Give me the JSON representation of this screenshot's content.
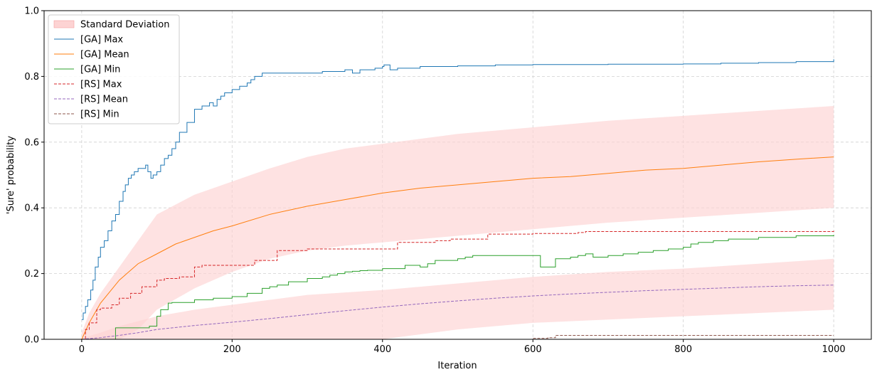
{
  "chart_data": {
    "type": "line",
    "xlabel": "Iteration",
    "ylabel": "'Sure' probability",
    "xlim": [
      -50,
      1050
    ],
    "ylim": [
      0.0,
      1.0
    ],
    "xticks": [
      "0",
      "200",
      "400",
      "600",
      "800",
      "1000"
    ],
    "yticks": [
      "0.0",
      "0.2",
      "0.4",
      "0.6",
      "0.8",
      "1.0"
    ],
    "grid": true,
    "legend_position": "top-left",
    "bands": [
      {
        "name": "Standard Deviation",
        "color": "#fdd3d3",
        "x": [
          0,
          10,
          25,
          50,
          75,
          100,
          150,
          200,
          250,
          300,
          350,
          400,
          500,
          600,
          700,
          800,
          900,
          1000
        ],
        "upper": [
          0.02,
          0.08,
          0.14,
          0.22,
          0.3,
          0.38,
          0.44,
          0.48,
          0.52,
          0.555,
          0.58,
          0.595,
          0.625,
          0.645,
          0.665,
          0.68,
          0.695,
          0.71
        ],
        "lower": [
          0.0,
          0.0,
          0.0,
          0.0,
          0.03,
          0.09,
          0.155,
          0.205,
          0.245,
          0.27,
          0.285,
          0.295,
          0.315,
          0.335,
          0.355,
          0.37,
          0.385,
          0.4
        ]
      },
      {
        "name": "",
        "color": "#fdd3d3",
        "x": [
          0,
          10,
          25,
          50,
          100,
          150,
          200,
          250,
          300,
          400,
          500,
          600,
          700,
          800,
          900,
          1000
        ],
        "upper": [
          0.0,
          0.01,
          0.02,
          0.04,
          0.07,
          0.09,
          0.105,
          0.12,
          0.135,
          0.15,
          0.17,
          0.19,
          0.205,
          0.215,
          0.23,
          0.245
        ],
        "lower": [
          0.0,
          0.0,
          0.0,
          0.0,
          0.0,
          0.0,
          0.0,
          0.0,
          0.0,
          0.0,
          0.03,
          0.05,
          0.06,
          0.07,
          0.08,
          0.09
        ]
      }
    ],
    "series": [
      {
        "name": "[GA] Max",
        "color": "#1f77b4",
        "dash": "solid",
        "step": true,
        "x": [
          0,
          2,
          5,
          8,
          12,
          15,
          18,
          22,
          25,
          30,
          35,
          40,
          45,
          50,
          55,
          58,
          62,
          66,
          70,
          75,
          80,
          85,
          88,
          92,
          95,
          100,
          105,
          110,
          115,
          120,
          125,
          130,
          135,
          140,
          150,
          155,
          160,
          170,
          175,
          180,
          185,
          190,
          195,
          200,
          210,
          220,
          225,
          230,
          235,
          240,
          250,
          260,
          280,
          300,
          320,
          350,
          360,
          370,
          380,
          390,
          400,
          402,
          410,
          420,
          450,
          500,
          550,
          600,
          700,
          800,
          850,
          900,
          950,
          1000
        ],
        "y": [
          0.06,
          0.08,
          0.1,
          0.12,
          0.15,
          0.18,
          0.22,
          0.25,
          0.28,
          0.3,
          0.33,
          0.36,
          0.38,
          0.42,
          0.45,
          0.47,
          0.49,
          0.5,
          0.51,
          0.52,
          0.52,
          0.53,
          0.51,
          0.49,
          0.5,
          0.51,
          0.53,
          0.55,
          0.56,
          0.58,
          0.6,
          0.63,
          0.63,
          0.66,
          0.7,
          0.7,
          0.71,
          0.72,
          0.71,
          0.73,
          0.74,
          0.75,
          0.75,
          0.76,
          0.77,
          0.78,
          0.79,
          0.8,
          0.8,
          0.81,
          0.81,
          0.81,
          0.81,
          0.81,
          0.815,
          0.82,
          0.81,
          0.82,
          0.82,
          0.825,
          0.83,
          0.835,
          0.82,
          0.825,
          0.83,
          0.832,
          0.835,
          0.836,
          0.837,
          0.838,
          0.84,
          0.842,
          0.845,
          0.852
        ]
      },
      {
        "name": "[GA] Mean",
        "color": "#ff7f0e",
        "dash": "solid",
        "step": false,
        "x": [
          0,
          10,
          25,
          50,
          75,
          100,
          125,
          150,
          175,
          200,
          250,
          300,
          350,
          400,
          450,
          500,
          550,
          600,
          650,
          700,
          750,
          800,
          850,
          900,
          950,
          1000
        ],
        "y": [
          0.0,
          0.05,
          0.11,
          0.18,
          0.23,
          0.26,
          0.29,
          0.31,
          0.33,
          0.345,
          0.38,
          0.405,
          0.425,
          0.445,
          0.46,
          0.47,
          0.48,
          0.49,
          0.495,
          0.505,
          0.515,
          0.52,
          0.53,
          0.54,
          0.548,
          0.555
        ]
      },
      {
        "name": "[GA] Min",
        "color": "#2ca02c",
        "dash": "solid",
        "step": true,
        "x": [
          0,
          40,
          45,
          90,
          100,
          105,
          115,
          120,
          150,
          175,
          200,
          210,
          220,
          240,
          250,
          260,
          275,
          300,
          320,
          330,
          340,
          350,
          360,
          370,
          380,
          400,
          430,
          450,
          460,
          470,
          480,
          500,
          510,
          520,
          540,
          570,
          580,
          600,
          610,
          620,
          630,
          650,
          660,
          670,
          680,
          690,
          700,
          720,
          740,
          760,
          780,
          800,
          810,
          820,
          840,
          860,
          900,
          950,
          1000
        ],
        "y": [
          0.0,
          0.0,
          0.035,
          0.04,
          0.07,
          0.09,
          0.11,
          0.112,
          0.12,
          0.125,
          0.13,
          0.13,
          0.14,
          0.155,
          0.16,
          0.165,
          0.175,
          0.185,
          0.19,
          0.195,
          0.2,
          0.205,
          0.207,
          0.209,
          0.21,
          0.215,
          0.225,
          0.22,
          0.23,
          0.24,
          0.24,
          0.245,
          0.25,
          0.255,
          0.255,
          0.255,
          0.255,
          0.255,
          0.22,
          0.22,
          0.245,
          0.25,
          0.255,
          0.26,
          0.25,
          0.25,
          0.255,
          0.26,
          0.265,
          0.27,
          0.275,
          0.28,
          0.29,
          0.295,
          0.3,
          0.305,
          0.31,
          0.315,
          0.318
        ]
      },
      {
        "name": "[RS] Max",
        "color": "#d62728",
        "dash": "dashed",
        "step": true,
        "x": [
          0,
          5,
          10,
          20,
          25,
          40,
          50,
          65,
          80,
          100,
          110,
          130,
          150,
          160,
          230,
          260,
          300,
          420,
          470,
          490,
          540,
          600,
          660,
          670,
          1000
        ],
        "y": [
          0.0,
          0.03,
          0.05,
          0.09,
          0.095,
          0.105,
          0.125,
          0.14,
          0.16,
          0.18,
          0.185,
          0.19,
          0.22,
          0.225,
          0.24,
          0.27,
          0.275,
          0.295,
          0.3,
          0.305,
          0.32,
          0.322,
          0.325,
          0.328,
          0.33
        ]
      },
      {
        "name": "[RS] Mean",
        "color": "#9467bd",
        "dash": "dashed",
        "step": false,
        "x": [
          0,
          25,
          50,
          75,
          100,
          150,
          200,
          250,
          300,
          350,
          400,
          450,
          500,
          550,
          600,
          650,
          700,
          750,
          800,
          850,
          900,
          950,
          1000
        ],
        "y": [
          0.0,
          0.005,
          0.012,
          0.02,
          0.03,
          0.042,
          0.052,
          0.063,
          0.075,
          0.087,
          0.098,
          0.108,
          0.117,
          0.125,
          0.132,
          0.138,
          0.143,
          0.148,
          0.152,
          0.156,
          0.16,
          0.163,
          0.165
        ]
      },
      {
        "name": "[RS] Min",
        "color": "#8c564b",
        "dash": "dashed",
        "step": true,
        "x": [
          0,
          600,
          620,
          630,
          1000
        ],
        "y": [
          0.0,
          0.003,
          0.005,
          0.012,
          0.012
        ]
      }
    ]
  }
}
